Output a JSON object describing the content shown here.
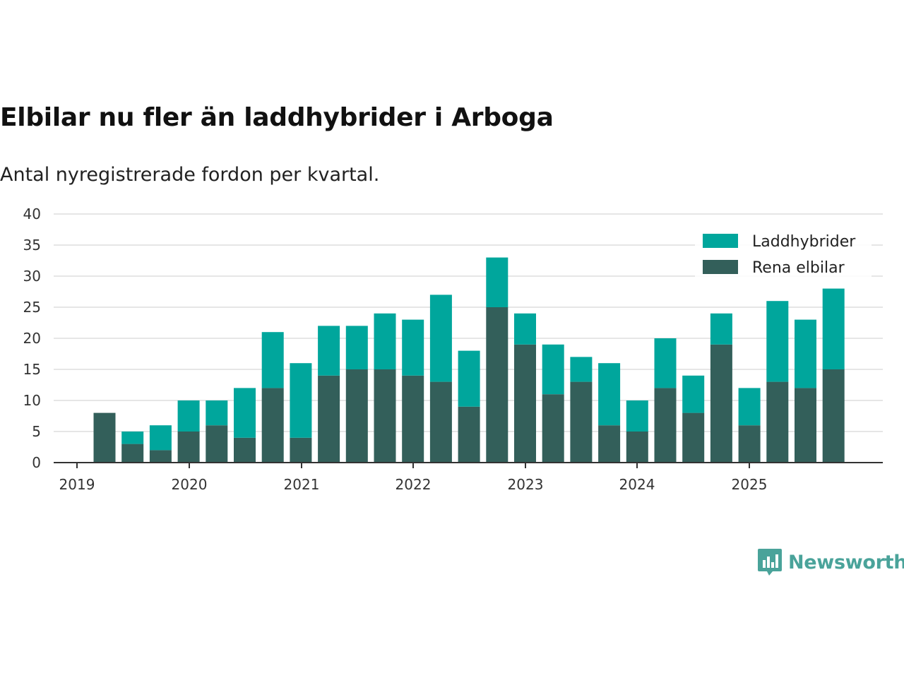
{
  "title": "Elbilar nu fler än laddhybrider i Arboga",
  "subtitle": "Antal nyregistrerade fordon per kvartal.",
  "brand": {
    "name": "Newsworthy"
  },
  "colors": {
    "laddhybrider": "#00a69c",
    "rena_elbilar": "#335f5a",
    "grid": "#dddddd",
    "axis": "#333333"
  },
  "chart_data": {
    "type": "bar",
    "stacked": true,
    "categories": [
      "2019 Q2",
      "2019 Q3",
      "2019 Q4",
      "2020 Q1",
      "2020 Q2",
      "2020 Q3",
      "2020 Q4",
      "2021 Q1",
      "2021 Q2",
      "2021 Q3",
      "2021 Q4",
      "2022 Q1",
      "2022 Q2",
      "2022 Q3",
      "2022 Q4",
      "2023 Q1",
      "2023 Q2",
      "2023 Q3",
      "2023 Q4",
      "2024 Q1",
      "2024 Q2",
      "2024 Q3",
      "2024 Q4",
      "2025 Q1",
      "2025 Q2",
      "2025 Q3",
      "2025 Q4"
    ],
    "series": [
      {
        "name": "Rena elbilar",
        "values": [
          8,
          3,
          2,
          5,
          6,
          4,
          12,
          4,
          14,
          15,
          15,
          14,
          13,
          9,
          25,
          19,
          11,
          13,
          6,
          5,
          12,
          8,
          19,
          6,
          13,
          12,
          15
        ]
      },
      {
        "name": "Laddhybrider",
        "values": [
          0,
          2,
          4,
          5,
          4,
          8,
          9,
          12,
          8,
          7,
          9,
          9,
          14,
          9,
          8,
          5,
          8,
          4,
          10,
          5,
          8,
          6,
          5,
          6,
          13,
          11,
          13
        ]
      }
    ],
    "x_tick_labels": [
      "2019",
      "2020",
      "2021",
      "2022",
      "2023",
      "2024",
      "2025"
    ],
    "y_ticks": [
      0,
      5,
      10,
      15,
      20,
      25,
      30,
      35,
      40
    ],
    "ylim": [
      0,
      40
    ],
    "legend": [
      "Laddhybrider",
      "Rena elbilar"
    ],
    "legend_position": "top-right",
    "grid": true
  }
}
